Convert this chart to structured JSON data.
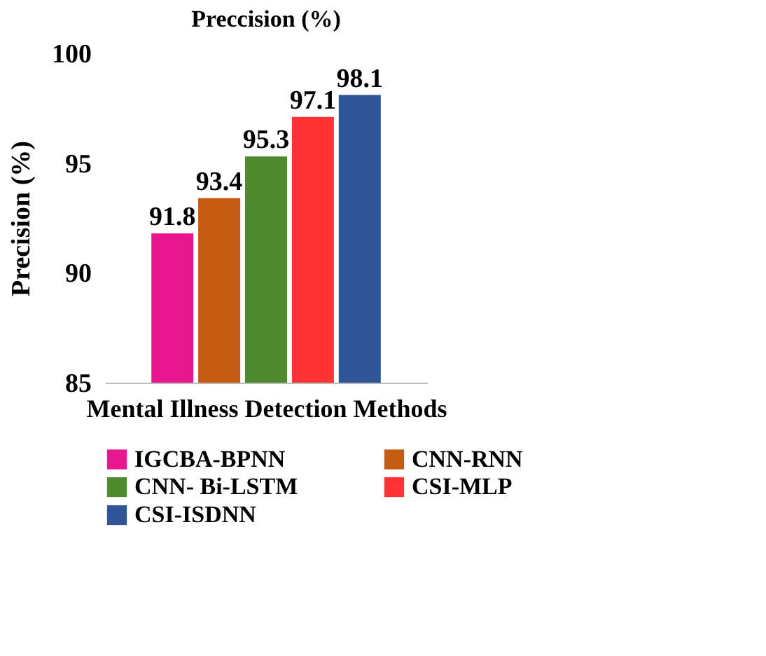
{
  "chart_data": {
    "type": "bar",
    "title": "Preccision (%)",
    "xlabel": "Mental Illness Detection Methods",
    "ylabel": "Precision  (%)",
    "categories": [
      null
    ],
    "series": [
      {
        "name": "IGCBA-BPNN",
        "color": "#e8178f",
        "values": [
          91.8
        ]
      },
      {
        "name": "CNN-RNN",
        "color": "#c55a11",
        "values": [
          93.4
        ]
      },
      {
        "name": "CNN- Bi-LSTM",
        "color": "#4e8a2e",
        "values": [
          95.3
        ]
      },
      {
        "name": "CSI-MLP",
        "color": "#ff3333",
        "values": [
          97.1
        ]
      },
      {
        "name": "CSI-ISDNN",
        "color": "#2f5597",
        "values": [
          98.1
        ]
      }
    ],
    "ylim": [
      85,
      100
    ],
    "yticks": [
      85,
      90,
      95,
      100
    ],
    "grid": false,
    "legend": "bottom",
    "data_labels": true,
    "tick_labels": "y"
  }
}
